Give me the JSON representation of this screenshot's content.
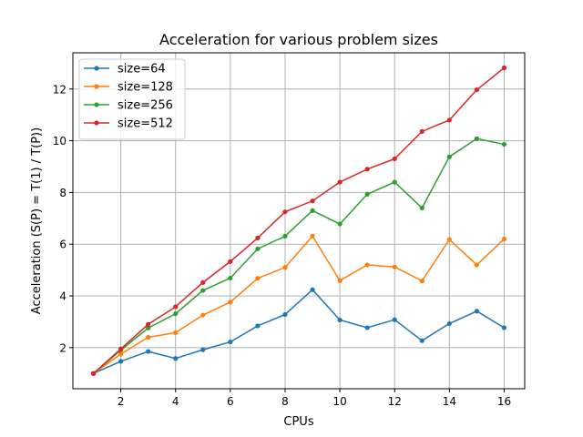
{
  "chart_data": {
    "type": "line",
    "title": "Acceleration for various problem sizes",
    "xlabel": "CPUs",
    "ylabel": "Acceleration (S(P) = T(1) / T(P))",
    "x": [
      1,
      2,
      3,
      4,
      5,
      6,
      7,
      8,
      9,
      10,
      11,
      12,
      13,
      14,
      15,
      16
    ],
    "xlim": [
      0.25,
      16.75
    ],
    "ylim": [
      0.41,
      13.4
    ],
    "xticks": [
      "2",
      "4",
      "6",
      "8",
      "10",
      "12",
      "14",
      "16"
    ],
    "yticks": [
      "2",
      "4",
      "6",
      "8",
      "10",
      "12"
    ],
    "grid": true,
    "legend_position": "top-left",
    "series": [
      {
        "name": "size=64",
        "color": "#1f77b4",
        "values": [
          1.0,
          1.47,
          1.85,
          1.58,
          1.92,
          2.22,
          2.84,
          3.28,
          4.24,
          3.07,
          2.77,
          3.08,
          2.27,
          2.93,
          3.41,
          2.77
        ]
      },
      {
        "name": "size=128",
        "color": "#ff7f0e",
        "values": [
          1.0,
          1.75,
          2.4,
          2.58,
          3.26,
          3.76,
          4.68,
          5.1,
          6.31,
          4.59,
          5.2,
          5.12,
          4.58,
          6.18,
          5.2,
          6.2
        ]
      },
      {
        "name": "size=256",
        "color": "#2ca02c",
        "values": [
          1.0,
          1.9,
          2.76,
          3.31,
          4.21,
          4.69,
          5.82,
          6.31,
          7.3,
          6.78,
          7.93,
          8.4,
          7.4,
          9.38,
          10.08,
          9.86
        ]
      },
      {
        "name": "size=512",
        "color": "#d62728",
        "values": [
          1.0,
          1.95,
          2.9,
          3.58,
          4.52,
          5.33,
          6.24,
          7.25,
          7.67,
          8.4,
          8.9,
          9.3,
          10.36,
          10.8,
          11.97,
          12.82
        ]
      }
    ]
  }
}
